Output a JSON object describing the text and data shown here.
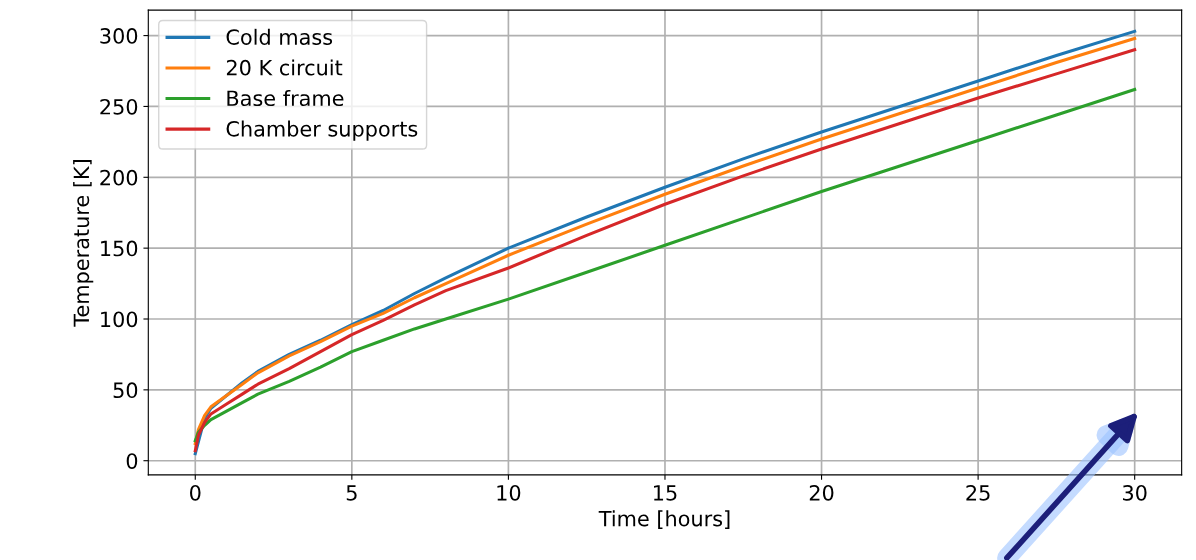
{
  "chart_data": {
    "type": "line",
    "xlabel": "Time [hours]",
    "ylabel": "Temperature [K]",
    "x": [
      0,
      0.1,
      0.3,
      0.5,
      1,
      1.5,
      2,
      3,
      4,
      5,
      6,
      7,
      8,
      10,
      12.5,
      15,
      17.5,
      20,
      22.5,
      25,
      27.5,
      30
    ],
    "series": [
      {
        "name": "Cold mass",
        "color": "#1f77b4",
        "x": [
          0,
          0.3,
          0.5,
          1,
          1.5,
          2,
          3,
          4,
          5,
          6,
          7,
          8,
          10,
          12.5,
          15,
          17.5,
          20,
          22.5,
          25,
          27.5,
          30
        ],
        "values": [
          5,
          30,
          37,
          46,
          55,
          63,
          75,
          85,
          96,
          106,
          118,
          129,
          150,
          172,
          193,
          213,
          232,
          250,
          268,
          286,
          303
        ]
      },
      {
        "name": "20 K circuit",
        "color": "#ff7f0e",
        "values": [
          12,
          22,
          32,
          38,
          46,
          54,
          62,
          74,
          84,
          95,
          104,
          115,
          125,
          145,
          167,
          188,
          208,
          227,
          245,
          263,
          281,
          298
        ]
      },
      {
        "name": "Base frame",
        "color": "#2ca02c",
        "values": [
          14,
          20,
          25,
          29,
          35,
          41,
          47,
          56,
          66,
          77,
          85,
          93,
          100,
          114,
          133,
          152,
          171,
          190,
          208,
          226,
          244,
          262
        ]
      },
      {
        "name": "Chamber supports",
        "color": "#d62728",
        "values": [
          7,
          18,
          27,
          33,
          40,
          47,
          54,
          65,
          77,
          89,
          99,
          110,
          120,
          136,
          159,
          181,
          201,
          220,
          238,
          256,
          273,
          290
        ]
      }
    ],
    "xlim": [
      -1.5,
      31.5
    ],
    "xticks": [
      0,
      5,
      10,
      15,
      20,
      25,
      30
    ],
    "ylim": [
      -10,
      318
    ],
    "yticks": [
      0,
      50,
      100,
      150,
      200,
      250,
      300
    ],
    "grid": true,
    "legend": "top left",
    "line_style": "solid",
    "marker": "none"
  }
}
